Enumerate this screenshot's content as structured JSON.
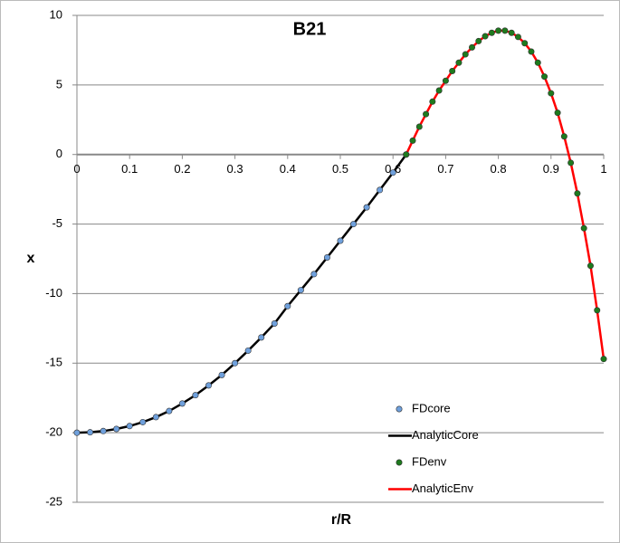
{
  "chart_data": {
    "type": "line",
    "title": "B21",
    "x_label": "r/R",
    "y_label": "x",
    "xlim": [
      0,
      1
    ],
    "xticks": [
      0,
      0.1,
      0.2,
      0.3,
      0.4,
      0.5,
      0.6,
      0.7,
      0.8,
      0.9,
      1
    ],
    "ylim": [
      -25,
      10
    ],
    "yticks": [
      -25,
      -20,
      -15,
      -10,
      -5,
      0,
      5,
      10
    ],
    "grid": true,
    "legend": "lower right",
    "series": [
      {
        "name": "FDcore",
        "style": "markers",
        "color": "#6fa0dc",
        "x": [
          0,
          0.025,
          0.05,
          0.075,
          0.1,
          0.125,
          0.15,
          0.175,
          0.2,
          0.225,
          0.25,
          0.275,
          0.3,
          0.325,
          0.35,
          0.375,
          0.4,
          0.425,
          0.45,
          0.475,
          0.5,
          0.525,
          0.55,
          0.575,
          0.6,
          0.625
        ],
        "values": [
          -20,
          -19.97,
          -19.88,
          -19.73,
          -19.52,
          -19.24,
          -18.88,
          -18.44,
          -17.9,
          -17.3,
          -16.6,
          -15.85,
          -15.0,
          -14.1,
          -13.15,
          -12.15,
          -10.9,
          -9.75,
          -8.6,
          -7.4,
          -6.2,
          -5.0,
          -3.8,
          -2.55,
          -1.3,
          0
        ]
      },
      {
        "name": "AnalyticCore",
        "style": "line",
        "color": "#000000",
        "x": [
          0,
          0.025,
          0.05,
          0.075,
          0.1,
          0.125,
          0.15,
          0.175,
          0.2,
          0.225,
          0.25,
          0.275,
          0.3,
          0.325,
          0.35,
          0.375,
          0.4,
          0.425,
          0.45,
          0.475,
          0.5,
          0.525,
          0.55,
          0.575,
          0.6,
          0.625
        ],
        "values": [
          -20,
          -19.97,
          -19.88,
          -19.73,
          -19.52,
          -19.24,
          -18.88,
          -18.44,
          -17.9,
          -17.3,
          -16.6,
          -15.85,
          -15.0,
          -14.1,
          -13.15,
          -12.15,
          -10.9,
          -9.75,
          -8.6,
          -7.4,
          -6.2,
          -5.0,
          -3.8,
          -2.55,
          -1.3,
          0
        ]
      },
      {
        "name": "FDenv",
        "style": "markers",
        "color": "#1e7a1e",
        "x": [
          0.625,
          0.6375,
          0.65,
          0.6625,
          0.675,
          0.6875,
          0.7,
          0.7125,
          0.725,
          0.7375,
          0.75,
          0.7625,
          0.775,
          0.7875,
          0.8,
          0.8125,
          0.825,
          0.8375,
          0.85,
          0.8625,
          0.875,
          0.8875,
          0.9,
          0.9125,
          0.925,
          0.9375,
          0.95,
          0.9625,
          0.975,
          0.9875,
          1
        ],
        "values": [
          0,
          1.0,
          2.0,
          2.9,
          3.8,
          4.6,
          5.3,
          6.0,
          6.6,
          7.2,
          7.7,
          8.15,
          8.5,
          8.75,
          8.9,
          8.9,
          8.75,
          8.45,
          8.0,
          7.4,
          6.6,
          5.6,
          4.4,
          3.0,
          1.3,
          -0.6,
          -2.8,
          -5.3,
          -8.0,
          -11.2,
          -14.7
        ]
      },
      {
        "name": "AnalyticEnv",
        "style": "line",
        "color": "#ff0000",
        "x": [
          0.625,
          0.6375,
          0.65,
          0.6625,
          0.675,
          0.6875,
          0.7,
          0.7125,
          0.725,
          0.7375,
          0.75,
          0.7625,
          0.775,
          0.7875,
          0.8,
          0.8125,
          0.825,
          0.8375,
          0.85,
          0.8625,
          0.875,
          0.8875,
          0.9,
          0.9125,
          0.925,
          0.9375,
          0.95,
          0.9625,
          0.975,
          0.9875,
          1
        ],
        "values": [
          0,
          1.0,
          2.0,
          2.9,
          3.8,
          4.6,
          5.3,
          6.0,
          6.6,
          7.2,
          7.7,
          8.15,
          8.5,
          8.75,
          8.9,
          8.9,
          8.75,
          8.45,
          8.0,
          7.4,
          6.6,
          5.6,
          4.4,
          3.0,
          1.3,
          -0.6,
          -2.8,
          -5.3,
          -8.0,
          -11.2,
          -14.7
        ]
      }
    ]
  }
}
